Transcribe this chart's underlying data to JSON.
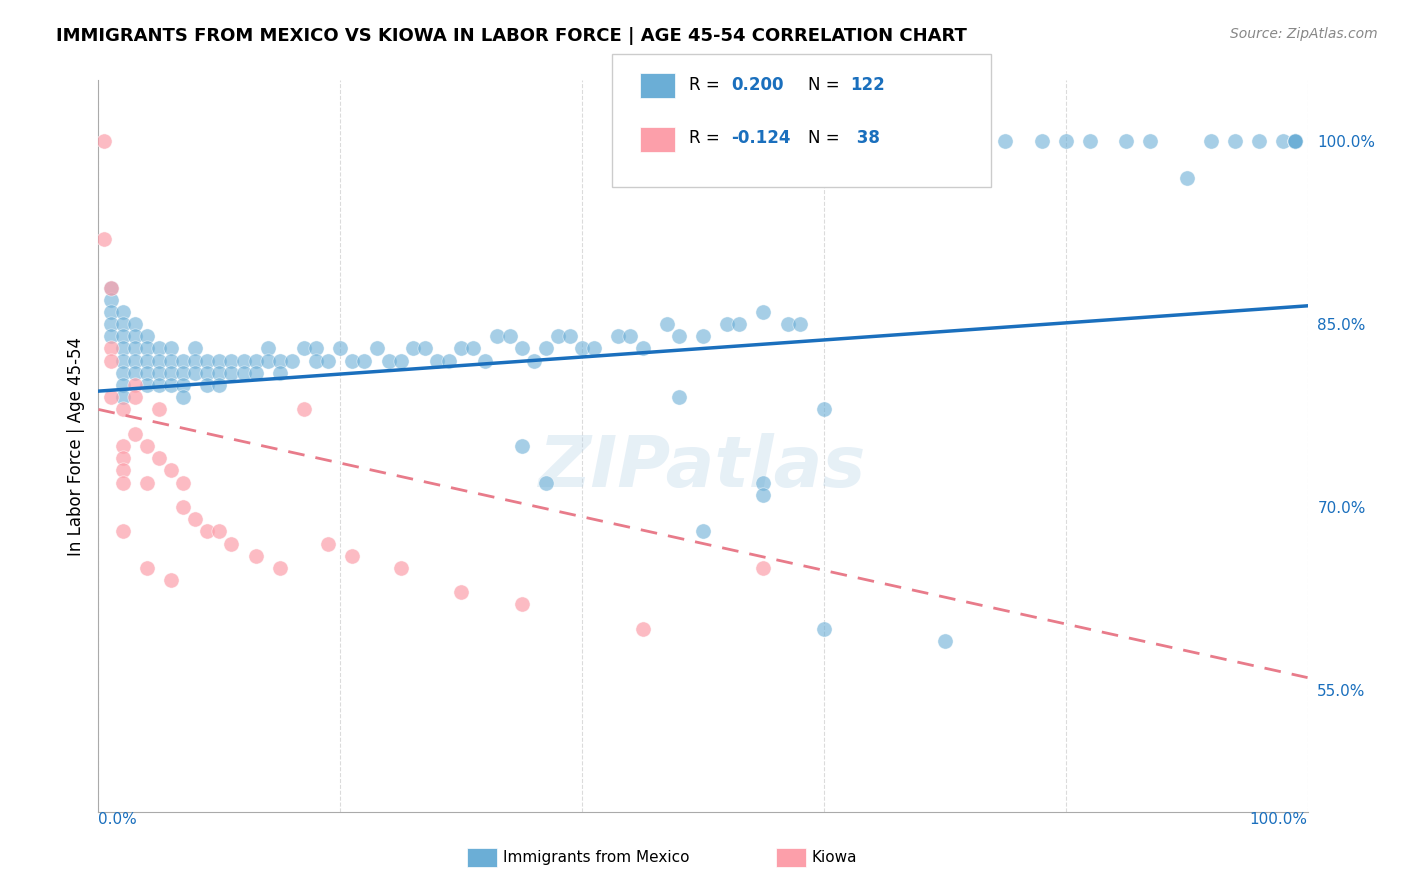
{
  "title": "IMMIGRANTS FROM MEXICO VS KIOWA IN LABOR FORCE | AGE 45-54 CORRELATION CHART",
  "source": "Source: ZipAtlas.com",
  "ylabel": "In Labor Force | Age 45-54",
  "right_yticks": [
    0.55,
    0.7,
    0.85,
    1.0
  ],
  "right_yticklabels": [
    "55.0%",
    "70.0%",
    "85.0%",
    "100.0%"
  ],
  "blue_color": "#6baed6",
  "pink_color": "#fc9faa",
  "blue_line_color": "#1a6fbd",
  "pink_line_color": "#e87b8a",
  "text_color": "#1a6fbd",
  "watermark": "ZIPatlas",
  "blue_scatter_x": [
    0.01,
    0.01,
    0.01,
    0.01,
    0.01,
    0.02,
    0.02,
    0.02,
    0.02,
    0.02,
    0.02,
    0.02,
    0.02,
    0.03,
    0.03,
    0.03,
    0.03,
    0.03,
    0.04,
    0.04,
    0.04,
    0.04,
    0.04,
    0.05,
    0.05,
    0.05,
    0.05,
    0.06,
    0.06,
    0.06,
    0.06,
    0.07,
    0.07,
    0.07,
    0.07,
    0.08,
    0.08,
    0.08,
    0.09,
    0.09,
    0.09,
    0.1,
    0.1,
    0.1,
    0.11,
    0.11,
    0.12,
    0.12,
    0.13,
    0.13,
    0.14,
    0.14,
    0.15,
    0.15,
    0.16,
    0.17,
    0.18,
    0.18,
    0.19,
    0.2,
    0.21,
    0.22,
    0.23,
    0.24,
    0.25,
    0.26,
    0.27,
    0.28,
    0.29,
    0.3,
    0.31,
    0.32,
    0.33,
    0.34,
    0.35,
    0.36,
    0.37,
    0.38,
    0.39,
    0.4,
    0.41,
    0.43,
    0.44,
    0.45,
    0.47,
    0.48,
    0.5,
    0.52,
    0.53,
    0.55,
    0.57,
    0.58,
    0.6,
    0.62,
    0.65,
    0.68,
    0.7,
    0.72,
    0.75,
    0.78,
    0.8,
    0.82,
    0.85,
    0.87,
    0.9,
    0.92,
    0.94,
    0.96,
    0.98,
    0.99,
    0.99,
    0.99,
    0.99,
    0.55,
    0.55,
    0.48,
    0.5,
    0.35,
    0.37,
    0.6,
    0.6,
    0.7
  ],
  "blue_scatter_y": [
    0.88,
    0.87,
    0.86,
    0.85,
    0.84,
    0.86,
    0.85,
    0.84,
    0.83,
    0.82,
    0.81,
    0.8,
    0.79,
    0.85,
    0.84,
    0.83,
    0.82,
    0.81,
    0.84,
    0.83,
    0.82,
    0.81,
    0.8,
    0.83,
    0.82,
    0.81,
    0.8,
    0.83,
    0.82,
    0.81,
    0.8,
    0.82,
    0.81,
    0.8,
    0.79,
    0.83,
    0.82,
    0.81,
    0.82,
    0.81,
    0.8,
    0.82,
    0.81,
    0.8,
    0.82,
    0.81,
    0.82,
    0.81,
    0.82,
    0.81,
    0.83,
    0.82,
    0.82,
    0.81,
    0.82,
    0.83,
    0.83,
    0.82,
    0.82,
    0.83,
    0.82,
    0.82,
    0.83,
    0.82,
    0.82,
    0.83,
    0.83,
    0.82,
    0.82,
    0.83,
    0.83,
    0.82,
    0.84,
    0.84,
    0.83,
    0.82,
    0.83,
    0.84,
    0.84,
    0.83,
    0.83,
    0.84,
    0.84,
    0.83,
    0.85,
    0.84,
    0.84,
    0.85,
    0.85,
    0.86,
    0.85,
    0.85,
    1.0,
    1.0,
    1.0,
    1.0,
    1.0,
    1.0,
    1.0,
    1.0,
    1.0,
    1.0,
    1.0,
    1.0,
    0.97,
    1.0,
    1.0,
    1.0,
    1.0,
    1.0,
    1.0,
    1.0,
    1.0,
    0.72,
    0.71,
    0.79,
    0.68,
    0.75,
    0.72,
    0.78,
    0.6,
    0.59
  ],
  "pink_scatter_x": [
    0.005,
    0.005,
    0.01,
    0.01,
    0.01,
    0.01,
    0.02,
    0.02,
    0.02,
    0.02,
    0.02,
    0.02,
    0.03,
    0.03,
    0.03,
    0.04,
    0.04,
    0.04,
    0.05,
    0.05,
    0.06,
    0.06,
    0.07,
    0.07,
    0.08,
    0.09,
    0.1,
    0.11,
    0.13,
    0.15,
    0.17,
    0.19,
    0.21,
    0.25,
    0.3,
    0.35,
    0.45,
    0.55
  ],
  "pink_scatter_y": [
    1.0,
    0.92,
    0.88,
    0.83,
    0.82,
    0.79,
    0.78,
    0.75,
    0.74,
    0.73,
    0.72,
    0.68,
    0.8,
    0.79,
    0.76,
    0.75,
    0.72,
    0.65,
    0.78,
    0.74,
    0.73,
    0.64,
    0.72,
    0.7,
    0.69,
    0.68,
    0.68,
    0.67,
    0.66,
    0.65,
    0.78,
    0.67,
    0.66,
    0.65,
    0.63,
    0.62,
    0.6,
    0.65
  ],
  "blue_line_x": [
    0.0,
    1.0
  ],
  "blue_line_y": [
    0.795,
    0.865
  ],
  "pink_line_x": [
    0.0,
    1.0
  ],
  "pink_line_y": [
    0.78,
    0.56
  ],
  "xlim": [
    0.0,
    1.0
  ],
  "ylim": [
    0.45,
    1.05
  ]
}
